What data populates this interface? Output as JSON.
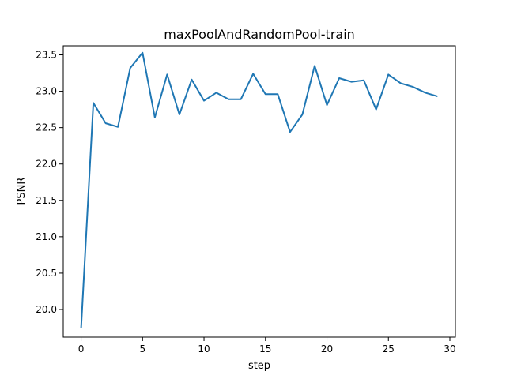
{
  "chart_data": {
    "type": "line",
    "title": "maxPoolAndRandomPool-train",
    "xlabel": "step",
    "ylabel": "PSNR",
    "xlim": [
      -1.45,
      30.45
    ],
    "ylim": [
      19.62,
      23.625
    ],
    "x_ticks": [
      0,
      5,
      10,
      15,
      20,
      25,
      30
    ],
    "y_ticks": [
      20.0,
      20.5,
      21.0,
      21.5,
      22.0,
      22.5,
      23.0,
      23.5
    ],
    "x_tick_labels": [
      "0",
      "5",
      "10",
      "15",
      "20",
      "25",
      "30"
    ],
    "y_tick_labels": [
      "20.0",
      "20.5",
      "21.0",
      "21.5",
      "22.0",
      "22.5",
      "23.0",
      "23.5"
    ],
    "grid": false,
    "line_color": "#1f77b4",
    "x": [
      0,
      1,
      2,
      3,
      4,
      5,
      6,
      7,
      8,
      9,
      10,
      11,
      12,
      13,
      14,
      15,
      16,
      17,
      18,
      19,
      20,
      21,
      22,
      23,
      24,
      25,
      26,
      27,
      28,
      29
    ],
    "y": [
      19.74,
      22.84,
      22.56,
      22.51,
      23.32,
      23.53,
      22.64,
      23.23,
      22.68,
      23.16,
      22.87,
      22.98,
      22.89,
      22.89,
      23.24,
      22.96,
      22.96,
      22.44,
      22.68,
      23.35,
      22.81,
      23.18,
      23.13,
      23.15,
      22.75,
      23.23,
      23.11,
      23.06,
      22.98,
      22.93
    ]
  }
}
